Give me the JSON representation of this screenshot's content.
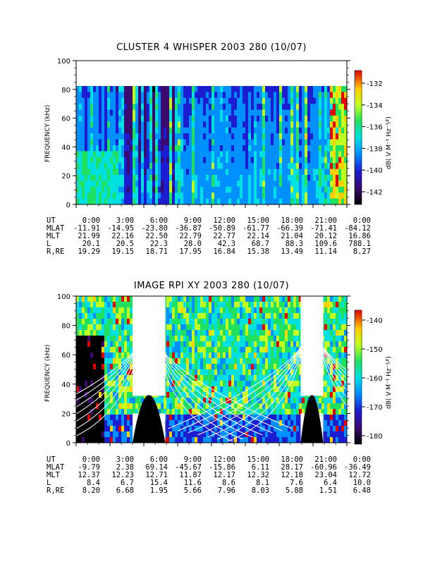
{
  "panels": [
    {
      "title": "CLUSTER 4 WHISPER 2003 280 (10/07)",
      "ylabel": "FREQUENCY (kHz)",
      "yticks": [
        "0",
        "20",
        "40",
        "60",
        "80",
        "100"
      ],
      "colorbar_label": "dB( V M⁻¹ Hz⁻¹⁄²)",
      "colorbar_ticks": [
        "-132",
        "-134",
        "-136",
        "-138",
        "-140",
        "-142"
      ],
      "info_rows": [
        {
          "label": "UT",
          "values": [
            "0:00",
            "3:00",
            "6:00",
            "9:00",
            "12:00",
            "15:00",
            "18:00",
            "21:00",
            "0:00"
          ]
        },
        {
          "label": "MLAT",
          "values": [
            "-11.91",
            "-14.95",
            "-23.80",
            "-36.87",
            "-50.89",
            "-61.77",
            "-66.39",
            "-71.41",
            "-84.12"
          ]
        },
        {
          "label": "MLT",
          "values": [
            "21.99",
            "22.16",
            "22.50",
            "22.79",
            "22.77",
            "22.14",
            "21.04",
            "20.12",
            "16.86"
          ]
        },
        {
          "label": "L",
          "values": [
            "20.1",
            "20.5",
            "22.3",
            "28.0",
            "42.3",
            "68.7",
            "88.3",
            "109.6",
            "788.1"
          ]
        },
        {
          "label": "R,RE",
          "values": [
            "19.29",
            "19.15",
            "18.71",
            "17.95",
            "16.84",
            "15.38",
            "13.49",
            "11.14",
            "8.27"
          ]
        }
      ]
    },
    {
      "title": "IMAGE RPI XY 2003 280 (10/07)",
      "ylabel": "FREQUENCY (kHz)",
      "yticks": [
        "0",
        "20",
        "40",
        "60",
        "80",
        "100"
      ],
      "colorbar_label": "dB( V M⁻¹ Hz⁻¹⁄²)",
      "colorbar_ticks": [
        "-140",
        "-150",
        "-160",
        "-170",
        "-180"
      ],
      "info_rows": [
        {
          "label": "UT",
          "values": [
            "0:00",
            "3:00",
            "6:00",
            "9:00",
            "12:00",
            "15:00",
            "18:00",
            "21:00",
            "0:00"
          ]
        },
        {
          "label": "MLAT",
          "values": [
            "-9.79",
            "2.38",
            "69.14",
            "-45.67",
            "-15.86",
            "6.11",
            "28.17",
            "-60.96",
            "-36.49"
          ]
        },
        {
          "label": "MLT",
          "values": [
            "12.37",
            "12.23",
            "12.71",
            "11.87",
            "12.17",
            "12.32",
            "12.18",
            "23.04",
            "12.72"
          ]
        },
        {
          "label": "L",
          "values": [
            "8.4",
            "6.7",
            "15.4",
            "11.6",
            "8.6",
            "8.1",
            "7.6",
            "6.4",
            "10.0"
          ]
        },
        {
          "label": "R,RE",
          "values": [
            "8.20",
            "6.68",
            "1.95",
            "5.66",
            "7.96",
            "8.03",
            "5.88",
            "1.51",
            "6.48"
          ]
        }
      ]
    }
  ],
  "chart_data": [
    {
      "type": "heatmap",
      "title": "CLUSTER 4 WHISPER 2003 280 (10/07)",
      "ylabel": "FREQUENCY (kHz)",
      "x_ticks": [
        "0:00",
        "3:00",
        "6:00",
        "9:00",
        "12:00",
        "15:00",
        "18:00",
        "21:00",
        "0:00"
      ],
      "ylim": [
        0,
        100
      ],
      "data_upper_freq_khz": 80,
      "colorbar_range_db": [
        -143,
        -131
      ],
      "colormap": "rainbow"
    },
    {
      "type": "heatmap",
      "title": "IMAGE RPI XY 2003 280 (10/07)",
      "ylabel": "FREQUENCY (kHz)",
      "x_ticks": [
        "0:00",
        "3:00",
        "6:00",
        "9:00",
        "12:00",
        "15:00",
        "18:00",
        "21:00",
        "0:00"
      ],
      "ylim": [
        0,
        100
      ],
      "data_gaps_hours": [
        [
          5.0,
          7.9
        ],
        [
          19.9,
          21.9
        ]
      ],
      "colorbar_range_db": [
        -185,
        -135
      ],
      "colormap": "rainbow"
    }
  ]
}
